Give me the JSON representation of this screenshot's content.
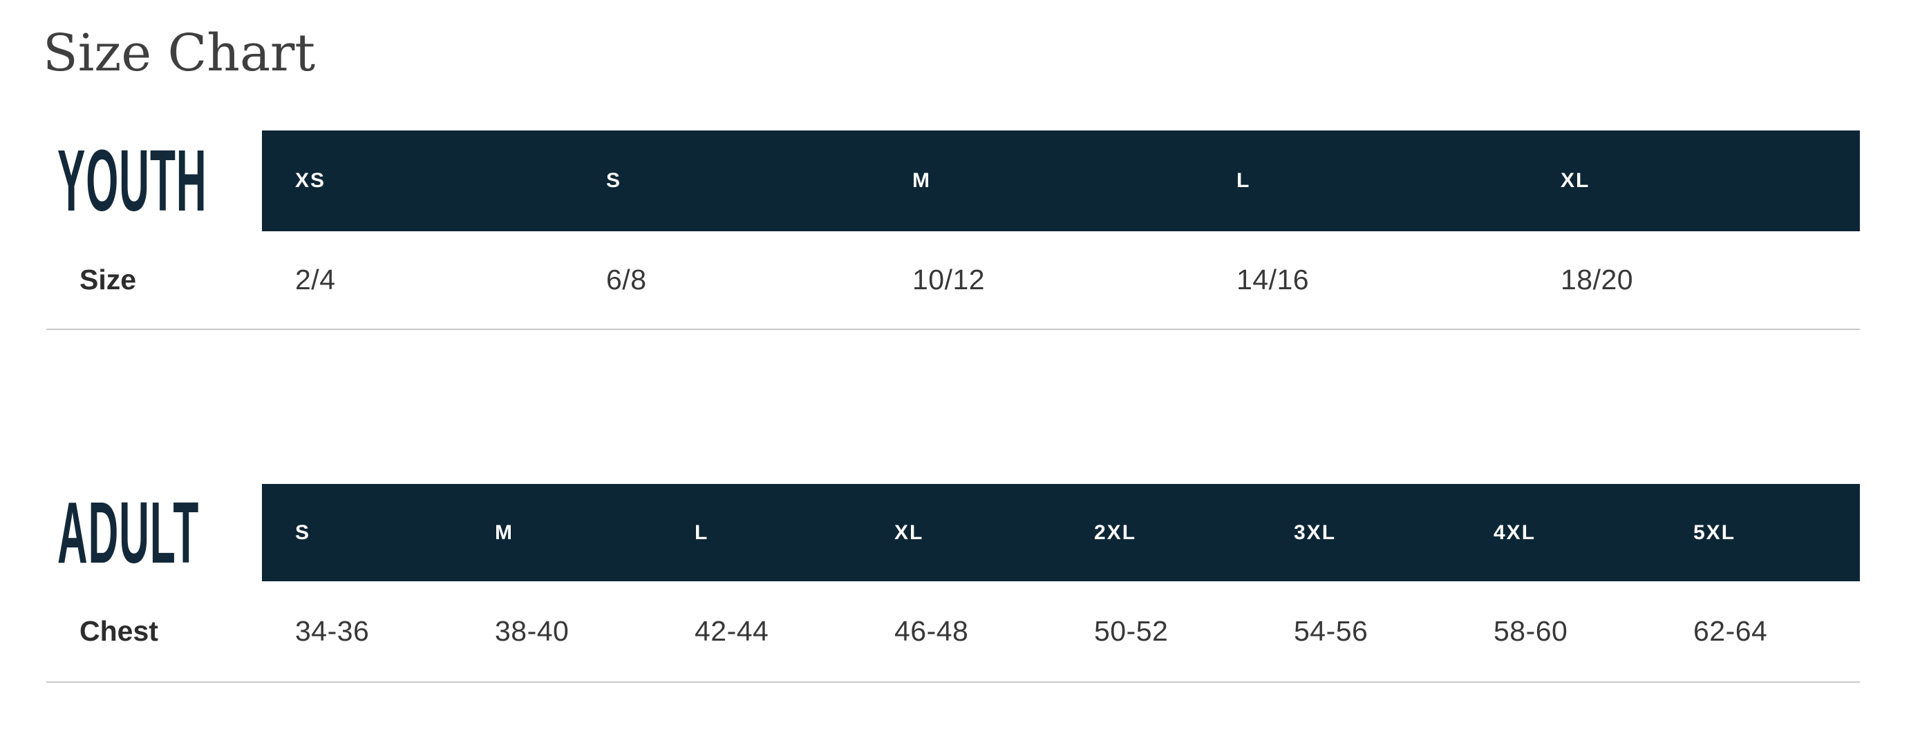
{
  "page": {
    "title": "Size Chart"
  },
  "colors": {
    "navy": "#0d2636",
    "label-navy": "#13293a",
    "title-color": "#3f3f3f",
    "text-color": "#383838",
    "row-label-color": "#2d2d2d",
    "divider-color": "#c9c9c9",
    "header-text": "#ffffff"
  },
  "size_charts": [
    {
      "group_label": "YOUTH",
      "columns": [
        "XS",
        "S",
        "M",
        "L",
        "XL"
      ],
      "rows": [
        {
          "label": "Size",
          "values": [
            "2/4",
            "6/8",
            "10/12",
            "14/16",
            "18/20"
          ]
        }
      ]
    },
    {
      "group_label": "ADULT",
      "columns": [
        "S",
        "M",
        "L",
        "XL",
        "2XL",
        "3XL",
        "4XL",
        "5XL"
      ],
      "rows": [
        {
          "label": "Chest",
          "values": [
            "34-36",
            "38-40",
            "42-44",
            "46-48",
            "50-52",
            "54-56",
            "58-60",
            "62-64"
          ]
        }
      ]
    }
  ]
}
